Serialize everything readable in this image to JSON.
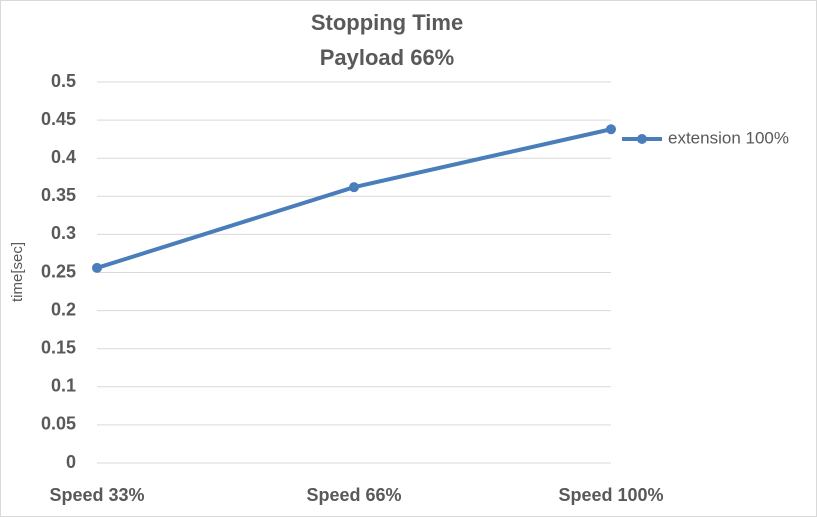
{
  "chart_data": {
    "type": "line",
    "title": "Stopping Time",
    "subtitle": "Payload 66%",
    "y_label": "time[sec]",
    "categories": [
      "Speed 33%",
      "Speed 66%",
      "Speed 100%"
    ],
    "series": [
      {
        "name": "extension 100%",
        "color": "#4a7ebb",
        "values": [
          0.256,
          0.362,
          0.438
        ]
      }
    ],
    "ylim": [
      0,
      0.5
    ],
    "yticks": [
      0,
      0.05,
      0.1,
      0.15,
      0.2,
      0.25,
      0.3,
      0.35,
      0.4,
      0.45,
      0.5
    ],
    "grid": true,
    "legend": "right"
  }
}
